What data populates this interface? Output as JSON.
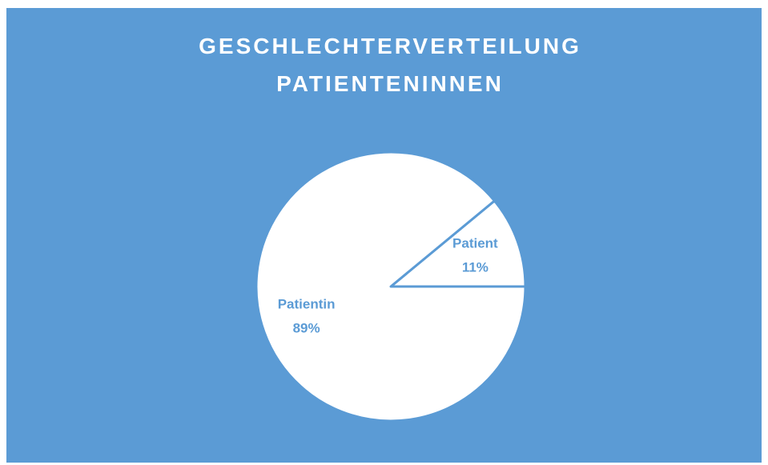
{
  "chart_data": {
    "type": "pie",
    "title": "GESCHLECHTERVERTEILUNG PATIENTENINNEN",
    "categories": [
      "Patient",
      "Patientin"
    ],
    "values": [
      11,
      89
    ],
    "value_labels": [
      "11%",
      "89%"
    ],
    "colors": [
      "#ffffff",
      "#ffffff"
    ],
    "background": "#5b9bd5",
    "label_color": "#5b9bd5"
  }
}
